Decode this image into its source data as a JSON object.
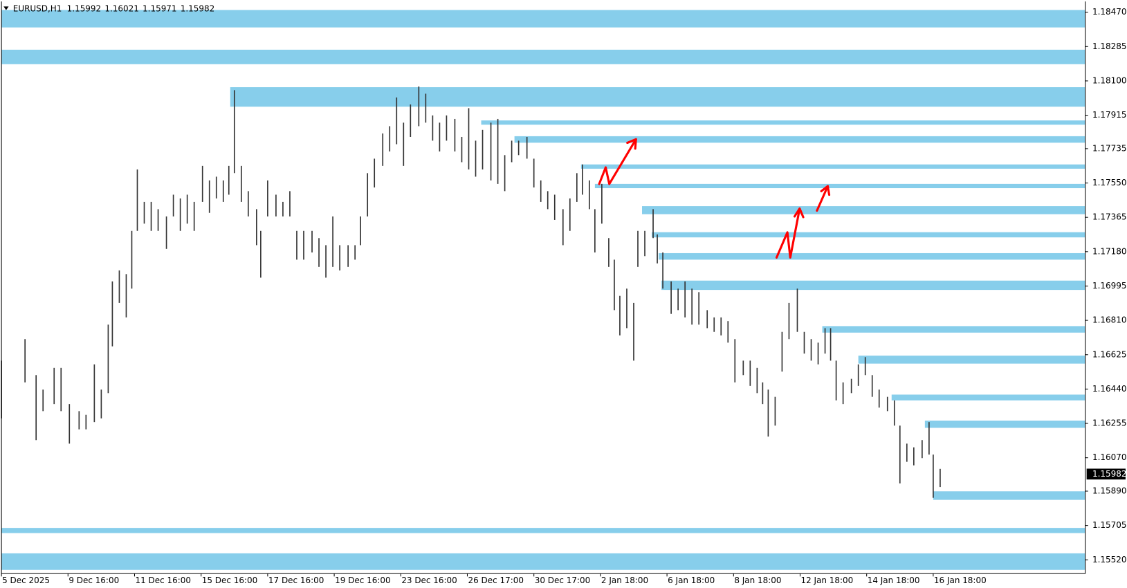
{
  "chart_data": {
    "type": "ohlc",
    "symbol": "EURUSD,H1",
    "ohlc": [
      1.15992,
      1.16021,
      1.15971,
      1.15982
    ],
    "bar_color": "#333333",
    "zone_color": "#87ceeb",
    "xlim": [
      0,
      781.6
    ],
    "ylim": [
      1.15446,
      1.18528
    ],
    "xticks": [
      {
        "value": 0,
        "label": "5 Dec 2025"
      },
      {
        "value": 48,
        "label": "9 Dec 16:00"
      },
      {
        "value": 96,
        "label": "11 Dec 16:00"
      },
      {
        "value": 144,
        "label": "15 Dec 16:00"
      },
      {
        "value": 192,
        "label": "17 Dec 16:00"
      },
      {
        "value": 240,
        "label": "19 Dec 16:00"
      },
      {
        "value": 288,
        "label": "23 Dec 16:00"
      },
      {
        "value": 336,
        "label": "26 Dec 17:00"
      },
      {
        "value": 384,
        "label": "30 Dec 17:00"
      },
      {
        "value": 432,
        "label": "2 Jan 18:00"
      },
      {
        "value": 480,
        "label": "6 Jan 18:00"
      },
      {
        "value": 528,
        "label": "8 Jan 18:00"
      },
      {
        "value": 576,
        "label": "12 Jan 18:00"
      },
      {
        "value": 624,
        "label": "14 Jan 18:00"
      },
      {
        "value": 672,
        "label": "16 Jan 18:00"
      }
    ],
    "yticks": [
      {
        "value": 1.1847,
        "label": "1.18470"
      },
      1.18285,
      {
        "value": 1.181,
        "label": "1.18100"
      },
      1.17915,
      1.17735,
      {
        "value": 1.1755,
        "label": "1.17550"
      },
      1.17365,
      {
        "value": 1.1718,
        "label": "1.17180"
      },
      1.16995,
      {
        "value": 1.1681,
        "label": "1.16810"
      },
      1.16625,
      {
        "value": 1.1644,
        "label": "1.16440"
      },
      1.16255,
      {
        "value": 1.1607,
        "label": "1.16070"
      },
      {
        "value": 1.1589,
        "label": "1.15890"
      },
      1.15705,
      {
        "value": 1.1552,
        "label": "1.15520"
      }
    ],
    "bars": {
      "x": [
        0,
        17,
        25,
        30,
        38,
        43,
        49,
        56,
        61,
        67,
        72,
        77,
        80,
        85,
        90,
        94,
        98,
        103,
        108,
        113,
        119,
        124,
        129,
        134,
        139,
        145,
        150,
        155,
        160,
        164,
        168,
        173,
        178,
        184,
        187,
        192,
        198,
        203,
        208,
        213,
        218,
        224,
        229,
        234,
        239,
        244,
        250,
        255,
        259,
        264,
        269,
        275,
        280,
        285,
        290,
        295,
        301,
        306,
        311,
        316,
        321,
        327,
        332,
        337,
        342,
        347,
        353,
        358,
        363,
        368,
        373,
        379,
        384,
        389,
        394,
        399,
        405,
        410,
        415,
        419,
        424,
        428,
        433,
        438,
        442,
        446,
        451,
        456,
        459,
        464,
        470,
        473,
        477,
        483,
        488,
        493,
        498,
        503,
        509,
        514,
        519,
        524,
        529,
        535,
        540,
        545,
        549,
        553,
        558,
        563,
        568,
        574,
        579,
        584,
        589,
        594,
        598,
        602,
        607,
        613,
        618,
        623,
        628,
        633,
        639,
        644,
        648,
        653,
        658,
        664,
        669,
        672,
        677
      ],
      "high": [
        1.16593,
        1.16709,
        1.16515,
        1.16437,
        1.16554,
        1.16554,
        1.16359,
        1.16321,
        1.16301,
        1.16573,
        1.16437,
        1.16787,
        1.1702,
        1.17079,
        1.17059,
        1.17292,
        1.17623,
        1.17448,
        1.17448,
        1.17409,
        1.1737,
        1.17487,
        1.17467,
        1.17487,
        1.17448,
        1.17642,
        1.17564,
        1.17584,
        1.17564,
        1.17642,
        1.1805,
        1.17642,
        1.17506,
        1.17409,
        1.17292,
        1.17564,
        1.17487,
        1.17448,
        1.17506,
        1.17292,
        1.17292,
        1.17292,
        1.17253,
        1.17215,
        1.1737,
        1.17215,
        1.17215,
        1.17215,
        1.1737,
        1.17603,
        1.17681,
        1.17817,
        1.17856,
        1.18011,
        1.17875,
        1.17973,
        1.1807,
        1.18031,
        1.17914,
        1.17875,
        1.17914,
        1.17895,
        1.17798,
        1.17953,
        1.17778,
        1.17836,
        1.17875,
        1.17895,
        1.177,
        1.17778,
        1.17778,
        1.17798,
        1.17681,
        1.17564,
        1.17506,
        1.17487,
        1.17409,
        1.17467,
        1.17603,
        1.1765,
        1.17564,
        1.17409,
        1.17545,
        1.17253,
        1.17137,
        1.16942,
        1.16981,
        1.16904,
        1.17292,
        1.17292,
        1.17409,
        1.17273,
        1.17176,
        1.1702,
        1.16981,
        1.1702,
        1.16981,
        1.16962,
        1.16865,
        1.16826,
        1.16826,
        1.16806,
        1.16709,
        1.16593,
        1.16593,
        1.16554,
        1.16476,
        1.16437,
        1.16398,
        1.16748,
        1.16904,
        1.16981,
        1.16748,
        1.16709,
        1.1669,
        1.16768,
        1.16768,
        1.16593,
        1.16476,
        1.16495,
        1.16573,
        1.16612,
        1.16515,
        1.16437,
        1.16398,
        1.16379,
        1.16243,
        1.16146,
        1.16126,
        1.16165,
        1.16262,
        1.16087,
        1.1601
      ],
      "low": [
        1.16282,
        1.16476,
        1.16165,
        1.16321,
        1.16359,
        1.16321,
        1.16146,
        1.16223,
        1.16223,
        1.16262,
        1.16282,
        1.16418,
        1.1667,
        1.16904,
        1.16826,
        1.16981,
        1.17292,
        1.17331,
        1.17292,
        1.17292,
        1.17195,
        1.1737,
        1.17292,
        1.17331,
        1.17292,
        1.17448,
        1.17389,
        1.17467,
        1.17448,
        1.17487,
        1.17603,
        1.17448,
        1.1737,
        1.17215,
        1.1704,
        1.1737,
        1.1737,
        1.1737,
        1.1737,
        1.17137,
        1.17137,
        1.17176,
        1.17098,
        1.1704,
        1.17098,
        1.17079,
        1.17098,
        1.17137,
        1.17215,
        1.1737,
        1.17526,
        1.17642,
        1.1772,
        1.17759,
        1.17642,
        1.17798,
        1.17856,
        1.17875,
        1.17778,
        1.1772,
        1.17778,
        1.1772,
        1.17662,
        1.17623,
        1.17584,
        1.17623,
        1.17564,
        1.17545,
        1.17506,
        1.17662,
        1.177,
        1.17681,
        1.17526,
        1.17448,
        1.17409,
        1.17351,
        1.17215,
        1.17292,
        1.17448,
        1.17487,
        1.17409,
        1.17176,
        1.17331,
        1.17098,
        1.16865,
        1.16729,
        1.16768,
        1.16593,
        1.17098,
        1.17156,
        1.17253,
        1.17117,
        1.16981,
        1.16845,
        1.16865,
        1.16826,
        1.16787,
        1.16787,
        1.16768,
        1.16748,
        1.16729,
        1.1669,
        1.16476,
        1.16515,
        1.16457,
        1.16418,
        1.16359,
        1.16184,
        1.16243,
        1.16534,
        1.16709,
        1.16748,
        1.16631,
        1.16593,
        1.16573,
        1.16631,
        1.16593,
        1.16379,
        1.16359,
        1.16418,
        1.16457,
        1.16515,
        1.16398,
        1.1634,
        1.16321,
        1.16243,
        1.15932,
        1.16048,
        1.16029,
        1.16068,
        1.16087,
        1.15854,
        1.15912
      ]
    },
    "zones": [
      {
        "start": 0,
        "top": 1.18482,
        "bottom": 1.18388
      },
      {
        "start": 0,
        "top": 1.18268,
        "bottom": 1.1819
      },
      {
        "start": 165,
        "top": 1.18066,
        "bottom": 1.17961
      },
      {
        "start": 346,
        "top": 1.17887,
        "bottom": 1.17864
      },
      {
        "start": 370,
        "top": 1.17802,
        "bottom": 1.17767
      },
      {
        "start": 418,
        "top": 1.1765,
        "bottom": 1.17627
      },
      {
        "start": 428,
        "top": 1.17545,
        "bottom": 1.17522
      },
      {
        "start": 462,
        "top": 1.17425,
        "bottom": 1.17382
      },
      {
        "start": 469,
        "top": 1.17285,
        "bottom": 1.17257
      },
      {
        "start": 474,
        "top": 1.17172,
        "bottom": 1.17137
      },
      {
        "start": 476,
        "top": 1.17024,
        "bottom": 1.16974
      },
      {
        "start": 592,
        "top": 1.16779,
        "bottom": 1.16744
      },
      {
        "start": 618,
        "top": 1.1662,
        "bottom": 1.16577
      },
      {
        "start": 642,
        "top": 1.1641,
        "bottom": 1.16379
      },
      {
        "start": 666,
        "top": 1.1627,
        "bottom": 1.16231
      },
      {
        "start": 672,
        "top": 1.15889,
        "bottom": 1.15843
      },
      {
        "start": 0,
        "top": 1.15692,
        "bottom": 1.15664
      },
      {
        "start": 0,
        "top": 1.15555,
        "bottom": 1.15466
      }
    ]
  }
}
